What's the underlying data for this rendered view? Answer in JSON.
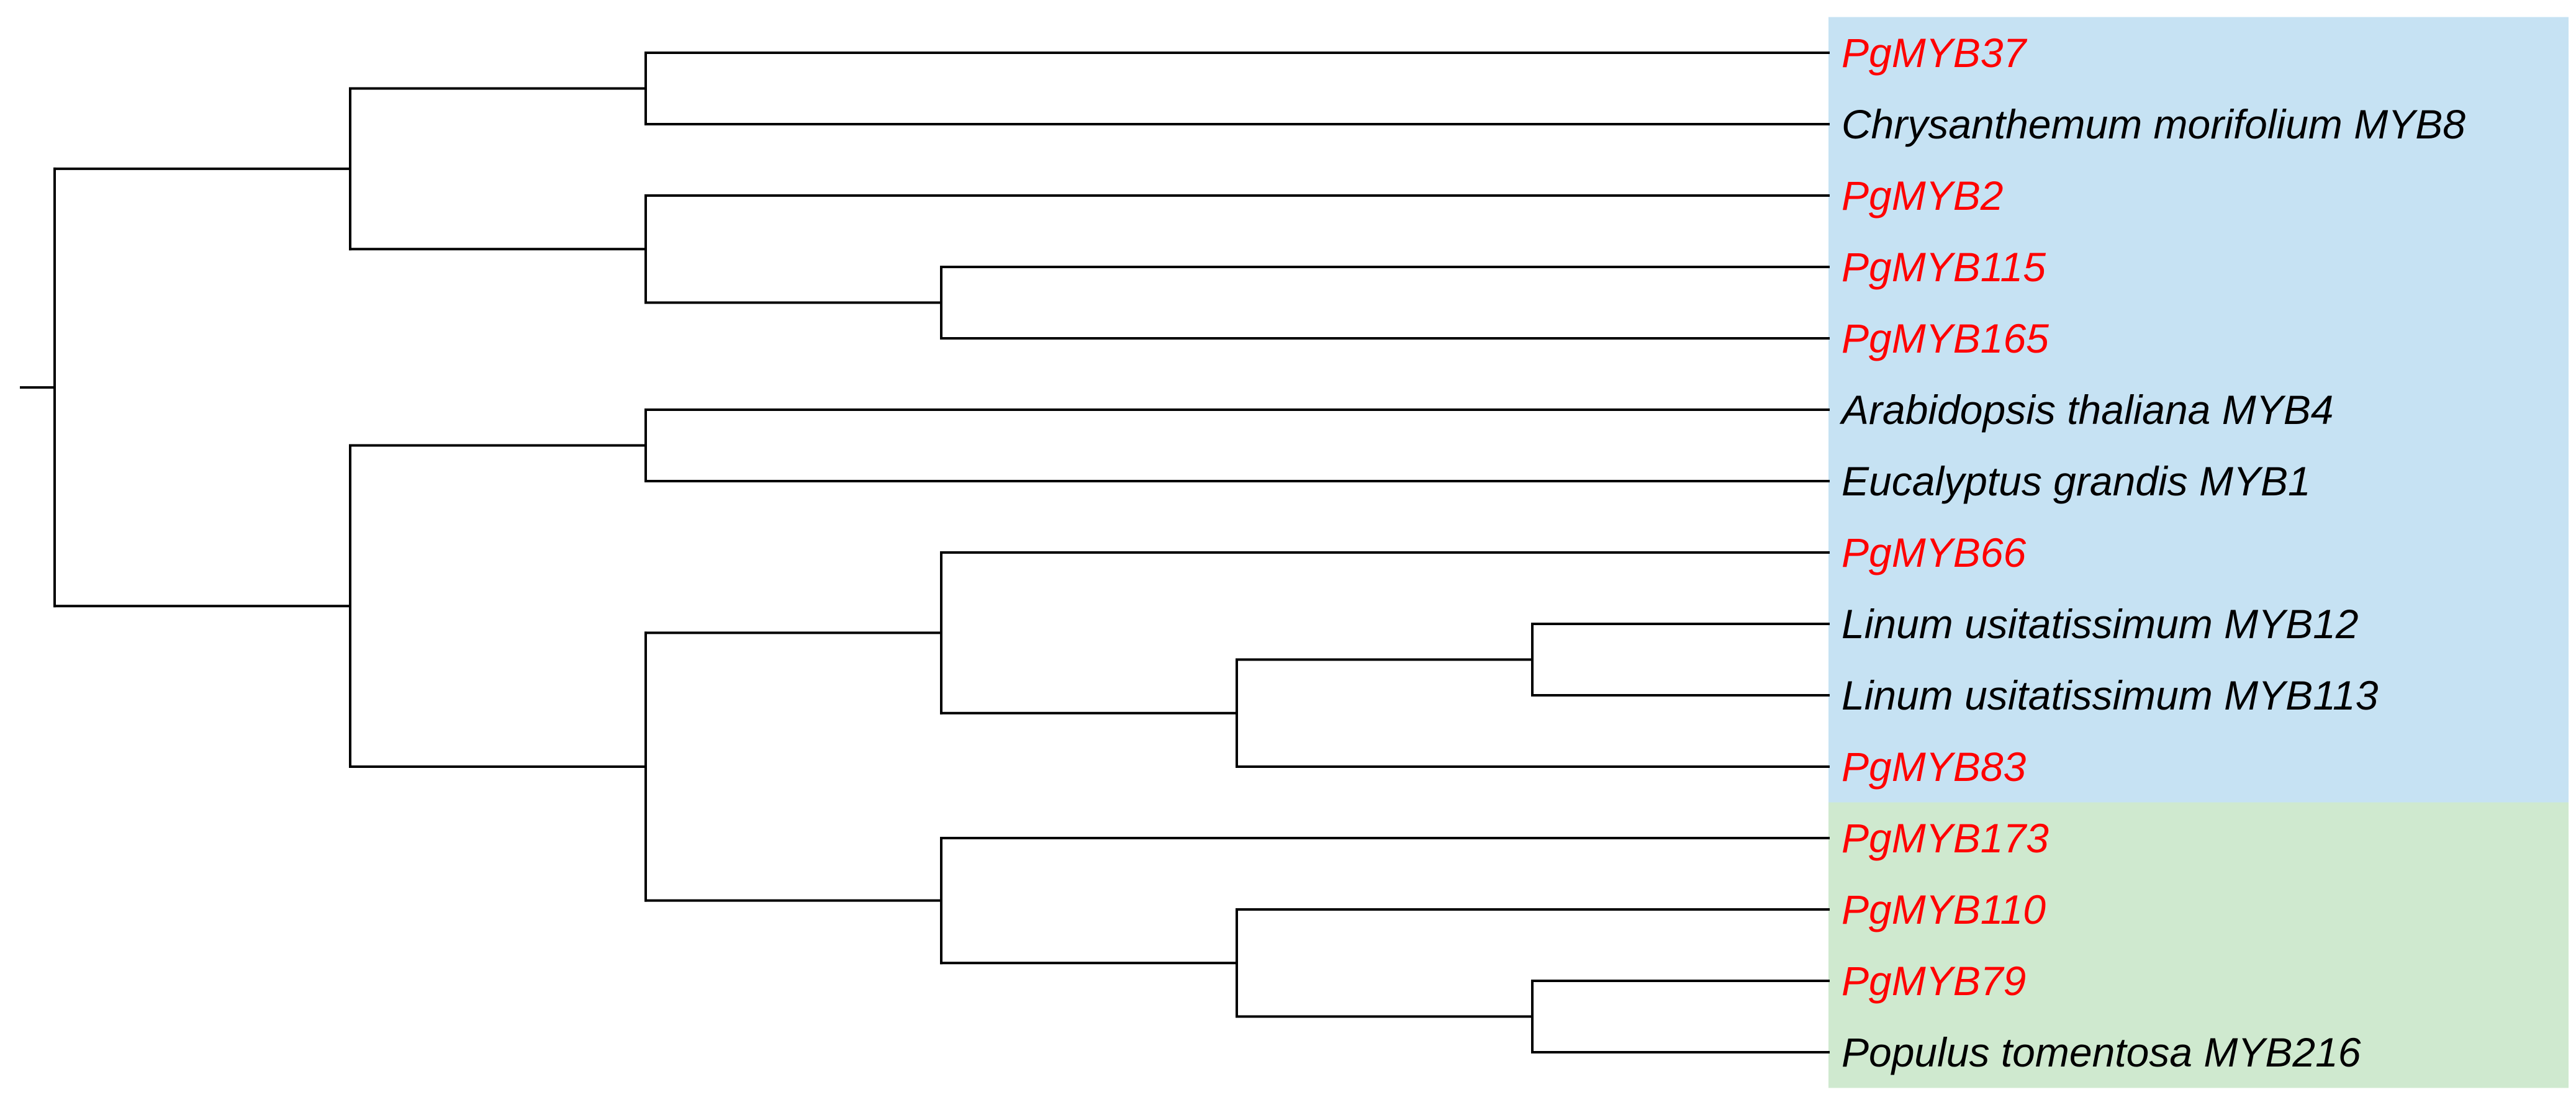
{
  "tree": {
    "highlight_colors": [
      "#c6e2f3",
      "#cfe9cf"
    ],
    "gene_color": "#ff0000",
    "species_color": "#000000",
    "leaves": [
      {
        "label": "PgMYB37",
        "kind": "gene"
      },
      {
        "label": "Chrysanthemum morifolium MYB8",
        "kind": "species"
      },
      {
        "label": "PgMYB2",
        "kind": "gene"
      },
      {
        "label": "PgMYB115",
        "kind": "gene"
      },
      {
        "label": "PgMYB165",
        "kind": "gene"
      },
      {
        "label": "Arabidopsis thaliana MYB4",
        "kind": "species"
      },
      {
        "label": "Eucalyptus grandis MYB1",
        "kind": "species"
      },
      {
        "label": "PgMYB66",
        "kind": "gene"
      },
      {
        "label": "Linum usitatissimum MYB12",
        "kind": "species"
      },
      {
        "label": "Linum usitatissimum MYB113",
        "kind": "species"
      },
      {
        "label": "PgMYB83",
        "kind": "gene"
      },
      {
        "label": "PgMYB173",
        "kind": "gene"
      },
      {
        "label": "PgMYB110",
        "kind": "gene"
      },
      {
        "label": "PgMYB79",
        "kind": "gene"
      },
      {
        "label": "Populus tomentosa MYB216",
        "kind": "species"
      }
    ],
    "topology": [
      [
        [
          0,
          1
        ],
        [
          2,
          [
            3,
            4
          ]
        ]
      ],
      [
        [
          5,
          6
        ],
        [
          [
            7,
            [
              [
                8,
                9
              ],
              10
            ]
          ],
          [
            11,
            [
              12,
              [
                13,
                14
              ]
            ]
          ]
        ]
      ]
    ],
    "groups": [
      {
        "first_leaf": 0,
        "last_leaf": 10,
        "color": "#c6e2f3"
      },
      {
        "first_leaf": 11,
        "last_leaf": 14,
        "color": "#cfe9cf"
      }
    ]
  }
}
